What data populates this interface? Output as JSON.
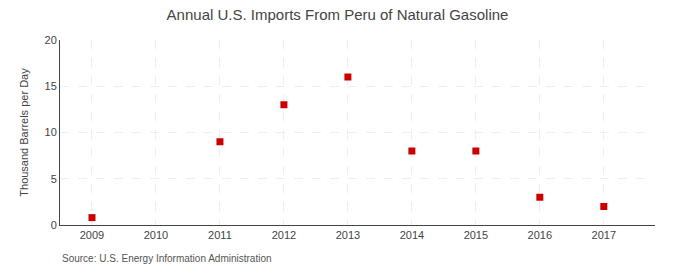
{
  "chart_data": {
    "type": "scatter",
    "title": "Annual U.S. Imports From Peru of Natural Gasoline",
    "y_label": "Thousand Barrels per Day",
    "annotations": [
      "Source: U.S. Energy Information Administration"
    ],
    "x": [
      2009,
      2011,
      2012,
      2013,
      2014,
      2015,
      2016,
      2017
    ],
    "values": [
      0.8,
      9.0,
      13.0,
      16.0,
      8.0,
      8.0,
      3.0,
      2.0
    ],
    "color": "#cc0000",
    "marker": "square",
    "xlim": [
      2008.5,
      2017.8
    ],
    "xticks": [
      2009,
      2010,
      2011,
      2012,
      2013,
      2014,
      2015,
      2016,
      2017
    ],
    "ylim": [
      0,
      20
    ],
    "yticks": [
      0,
      5,
      10,
      15,
      20
    ],
    "grid": true
  }
}
